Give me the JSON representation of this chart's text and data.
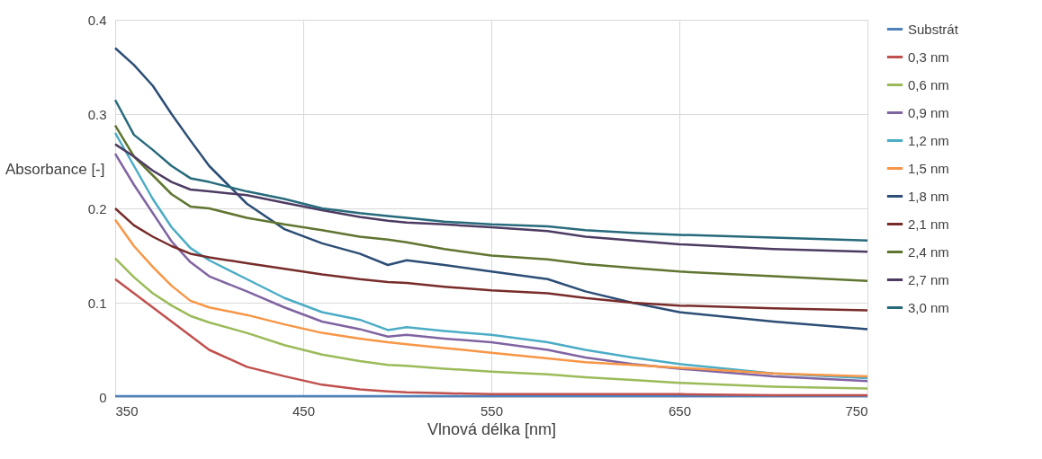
{
  "chart_data": {
    "type": "line",
    "xlabel": "Vlnová délka [nm]",
    "ylabel": "Absorbance [-]",
    "x": [
      350,
      360,
      370,
      380,
      390,
      400,
      420,
      440,
      460,
      480,
      495,
      505,
      525,
      550,
      580,
      600,
      625,
      650,
      700,
      750
    ],
    "xlim": [
      350,
      750
    ],
    "xticks": [
      350,
      450,
      550,
      650,
      750
    ],
    "ylim": [
      0,
      0.4
    ],
    "yticks": [
      0,
      0.1,
      0.2,
      0.3,
      0.4
    ],
    "grid": true,
    "legend": "right",
    "marker": "none",
    "line_style": "solid",
    "series": [
      {
        "name": "Substrát",
        "color": "#4f81bd",
        "values": [
          0.001,
          0.001,
          0.001,
          0.001,
          0.001,
          0.001,
          0.001,
          0.001,
          0.001,
          0.001,
          0.001,
          0.001,
          0.001,
          0.001,
          0.001,
          0.001,
          0.001,
          0.001,
          0.001,
          0.001
        ]
      },
      {
        "name": "0,3 nm",
        "color": "#c0504d",
        "values": [
          0.125,
          0.11,
          0.095,
          0.08,
          0.065,
          0.05,
          0.032,
          0.022,
          0.013,
          0.008,
          0.006,
          0.005,
          0.004,
          0.003,
          0.003,
          0.003,
          0.003,
          0.003,
          0.002,
          0.002
        ]
      },
      {
        "name": "0,6 nm",
        "color": "#9bbb59",
        "values": [
          0.147,
          0.127,
          0.11,
          0.097,
          0.086,
          0.079,
          0.068,
          0.055,
          0.045,
          0.038,
          0.034,
          0.033,
          0.03,
          0.027,
          0.024,
          0.021,
          0.018,
          0.015,
          0.011,
          0.009
        ]
      },
      {
        "name": "0,9 nm",
        "color": "#8064a2",
        "values": [
          0.258,
          0.225,
          0.195,
          0.165,
          0.143,
          0.128,
          0.112,
          0.095,
          0.08,
          0.072,
          0.064,
          0.066,
          0.062,
          0.058,
          0.05,
          0.042,
          0.035,
          0.03,
          0.022,
          0.017
        ]
      },
      {
        "name": "1,2 nm",
        "color": "#4bacc6",
        "values": [
          0.28,
          0.245,
          0.21,
          0.18,
          0.158,
          0.145,
          0.125,
          0.105,
          0.09,
          0.082,
          0.071,
          0.074,
          0.07,
          0.066,
          0.058,
          0.05,
          0.042,
          0.035,
          0.025,
          0.02
        ]
      },
      {
        "name": "1,5 nm",
        "color": "#f79646",
        "values": [
          0.188,
          0.16,
          0.138,
          0.118,
          0.102,
          0.095,
          0.087,
          0.077,
          0.068,
          0.062,
          0.058,
          0.056,
          0.052,
          0.047,
          0.041,
          0.037,
          0.034,
          0.031,
          0.025,
          0.022
        ]
      },
      {
        "name": "1,8 nm",
        "color": "#2c4d75",
        "values": [
          0.37,
          0.352,
          0.33,
          0.3,
          0.272,
          0.245,
          0.205,
          0.178,
          0.163,
          0.152,
          0.14,
          0.145,
          0.14,
          0.133,
          0.125,
          0.112,
          0.1,
          0.09,
          0.08,
          0.072
        ]
      },
      {
        "name": "2,1 nm",
        "color": "#772c2a",
        "values": [
          0.2,
          0.182,
          0.17,
          0.16,
          0.152,
          0.148,
          0.142,
          0.136,
          0.13,
          0.125,
          0.122,
          0.121,
          0.117,
          0.113,
          0.11,
          0.105,
          0.1,
          0.097,
          0.094,
          0.092
        ]
      },
      {
        "name": "2,4 nm",
        "color": "#5f7530",
        "values": [
          0.288,
          0.255,
          0.235,
          0.215,
          0.202,
          0.2,
          0.19,
          0.183,
          0.177,
          0.17,
          0.167,
          0.164,
          0.157,
          0.15,
          0.146,
          0.141,
          0.137,
          0.133,
          0.128,
          0.123
        ]
      },
      {
        "name": "2,7 nm",
        "color": "#4d3b62",
        "values": [
          0.268,
          0.255,
          0.24,
          0.228,
          0.22,
          0.218,
          0.214,
          0.206,
          0.198,
          0.191,
          0.187,
          0.185,
          0.183,
          0.18,
          0.176,
          0.17,
          0.166,
          0.162,
          0.157,
          0.154
        ]
      },
      {
        "name": "3,0 nm",
        "color": "#276a7c",
        "values": [
          0.315,
          0.278,
          0.262,
          0.245,
          0.232,
          0.228,
          0.218,
          0.21,
          0.2,
          0.195,
          0.192,
          0.19,
          0.186,
          0.183,
          0.181,
          0.177,
          0.174,
          0.172,
          0.169,
          0.166
        ]
      }
    ]
  }
}
